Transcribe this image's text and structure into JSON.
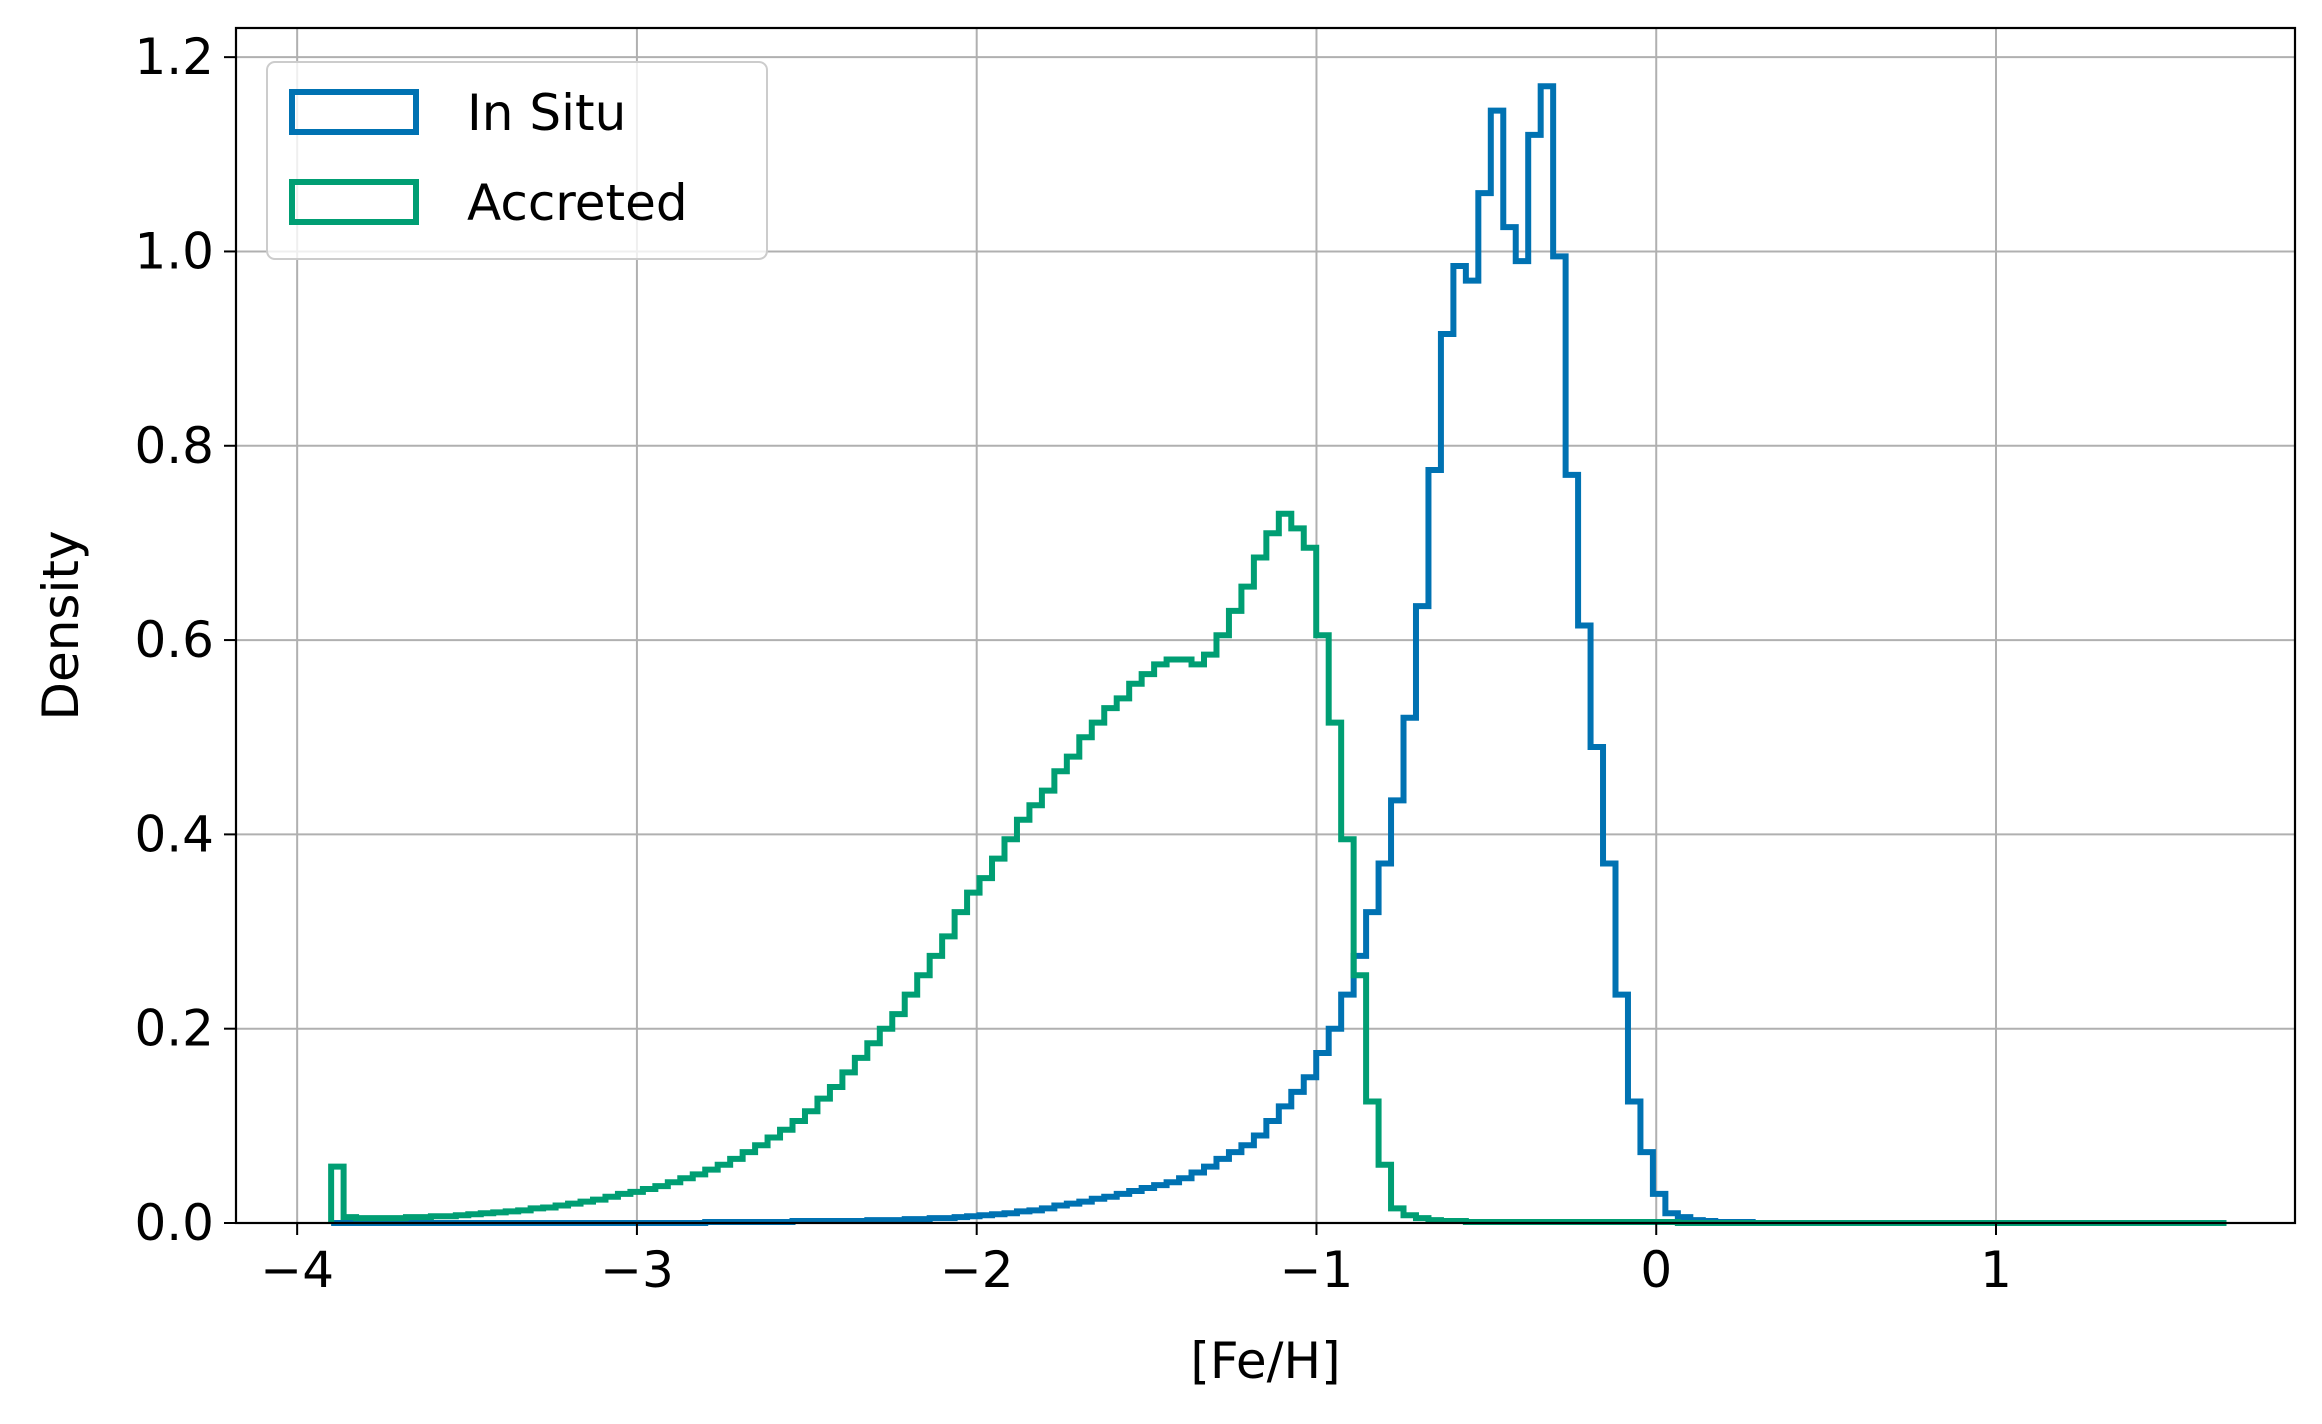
{
  "chart_data": {
    "type": "histogram",
    "title": "",
    "xlabel": "[Fe/H]",
    "ylabel": "Density",
    "xlim": [
      -4.18,
      1.88
    ],
    "ylim": [
      0,
      1.23
    ],
    "x_ticks": [
      {
        "value": -4,
        "label": "−4"
      },
      {
        "value": -3,
        "label": "−3"
      },
      {
        "value": -2,
        "label": "−2"
      },
      {
        "value": -1,
        "label": "−1"
      },
      {
        "value": 0,
        "label": "0"
      },
      {
        "value": 1,
        "label": "1"
      }
    ],
    "y_ticks": [
      {
        "value": 0.0,
        "label": "0.0"
      },
      {
        "value": 0.2,
        "label": "0.2"
      },
      {
        "value": 0.4,
        "label": "0.4"
      },
      {
        "value": 0.6,
        "label": "0.6"
      },
      {
        "value": 0.8,
        "label": "0.8"
      },
      {
        "value": 1.0,
        "label": "1.0"
      },
      {
        "value": 1.2,
        "label": "1.2"
      }
    ],
    "grid": true,
    "legend_position": "top-left",
    "bin_start": -3.9,
    "bin_width": 0.0367,
    "series": [
      {
        "name": "In Situ",
        "color": "#0072b2",
        "values": [
          0,
          0,
          0,
          0,
          0,
          0,
          0,
          0,
          0,
          0,
          0,
          0,
          0,
          0,
          0,
          0,
          0,
          0,
          0,
          0,
          0,
          0,
          0,
          0,
          0,
          0,
          0,
          0,
          0,
          0,
          0.001,
          0.001,
          0.001,
          0.001,
          0.001,
          0.001,
          0.001,
          0.002,
          0.002,
          0.002,
          0.002,
          0.002,
          0.002,
          0.003,
          0.003,
          0.003,
          0.004,
          0.004,
          0.005,
          0.005,
          0.006,
          0.007,
          0.008,
          0.009,
          0.01,
          0.012,
          0.013,
          0.015,
          0.018,
          0.02,
          0.022,
          0.025,
          0.027,
          0.03,
          0.033,
          0.036,
          0.039,
          0.042,
          0.046,
          0.052,
          0.058,
          0.066,
          0.073,
          0.08,
          0.09,
          0.105,
          0.12,
          0.135,
          0.15,
          0.175,
          0.2,
          0.235,
          0.275,
          0.32,
          0.37,
          0.435,
          0.52,
          0.635,
          0.775,
          0.915,
          0.985,
          0.97,
          1.06,
          1.145,
          1.025,
          0.99,
          1.12,
          1.17,
          0.995,
          0.77,
          0.615,
          0.49,
          0.37,
          0.235,
          0.125,
          0.073,
          0.03,
          0.01,
          0.006,
          0.003,
          0.002,
          0.001,
          0.001,
          0.001,
          0,
          0,
          0,
          0,
          0,
          0,
          0,
          0,
          0,
          0,
          0,
          0,
          0,
          0,
          0,
          0,
          0,
          0,
          0,
          0,
          0,
          0,
          0,
          0,
          0,
          0,
          0,
          0,
          0,
          0,
          0,
          0,
          0,
          0,
          0,
          0,
          0,
          0
        ]
      },
      {
        "name": "Accreted",
        "color": "#009e73",
        "values": [
          0.058,
          0.006,
          0.005,
          0.005,
          0.005,
          0.005,
          0.006,
          0.006,
          0.007,
          0.007,
          0.008,
          0.009,
          0.01,
          0.011,
          0.012,
          0.013,
          0.015,
          0.016,
          0.018,
          0.02,
          0.022,
          0.024,
          0.027,
          0.03,
          0.032,
          0.035,
          0.038,
          0.042,
          0.046,
          0.05,
          0.055,
          0.06,
          0.066,
          0.073,
          0.08,
          0.088,
          0.096,
          0.105,
          0.115,
          0.128,
          0.14,
          0.155,
          0.17,
          0.185,
          0.2,
          0.215,
          0.235,
          0.255,
          0.275,
          0.295,
          0.32,
          0.34,
          0.355,
          0.375,
          0.395,
          0.415,
          0.43,
          0.445,
          0.465,
          0.48,
          0.5,
          0.515,
          0.53,
          0.54,
          0.555,
          0.565,
          0.575,
          0.58,
          0.58,
          0.575,
          0.585,
          0.605,
          0.63,
          0.655,
          0.685,
          0.71,
          0.73,
          0.715,
          0.695,
          0.605,
          0.515,
          0.395,
          0.255,
          0.125,
          0.06,
          0.015,
          0.008,
          0.005,
          0.003,
          0.002,
          0.002,
          0.001,
          0.001,
          0.001,
          0.001,
          0.001,
          0.001,
          0.001,
          0.001,
          0.001,
          0.001,
          0.001,
          0.001,
          0.001,
          0.001,
          0.001,
          0.001,
          0.001,
          0,
          0,
          0,
          0,
          0,
          0,
          0,
          0,
          0,
          0,
          0,
          0,
          0,
          0,
          0,
          0,
          0,
          0,
          0,
          0,
          0,
          0,
          0,
          0,
          0,
          0,
          0,
          0,
          0,
          0,
          0,
          0,
          0,
          0,
          0,
          0,
          0,
          0,
          0,
          0,
          0,
          0,
          0,
          0
        ]
      }
    ]
  }
}
